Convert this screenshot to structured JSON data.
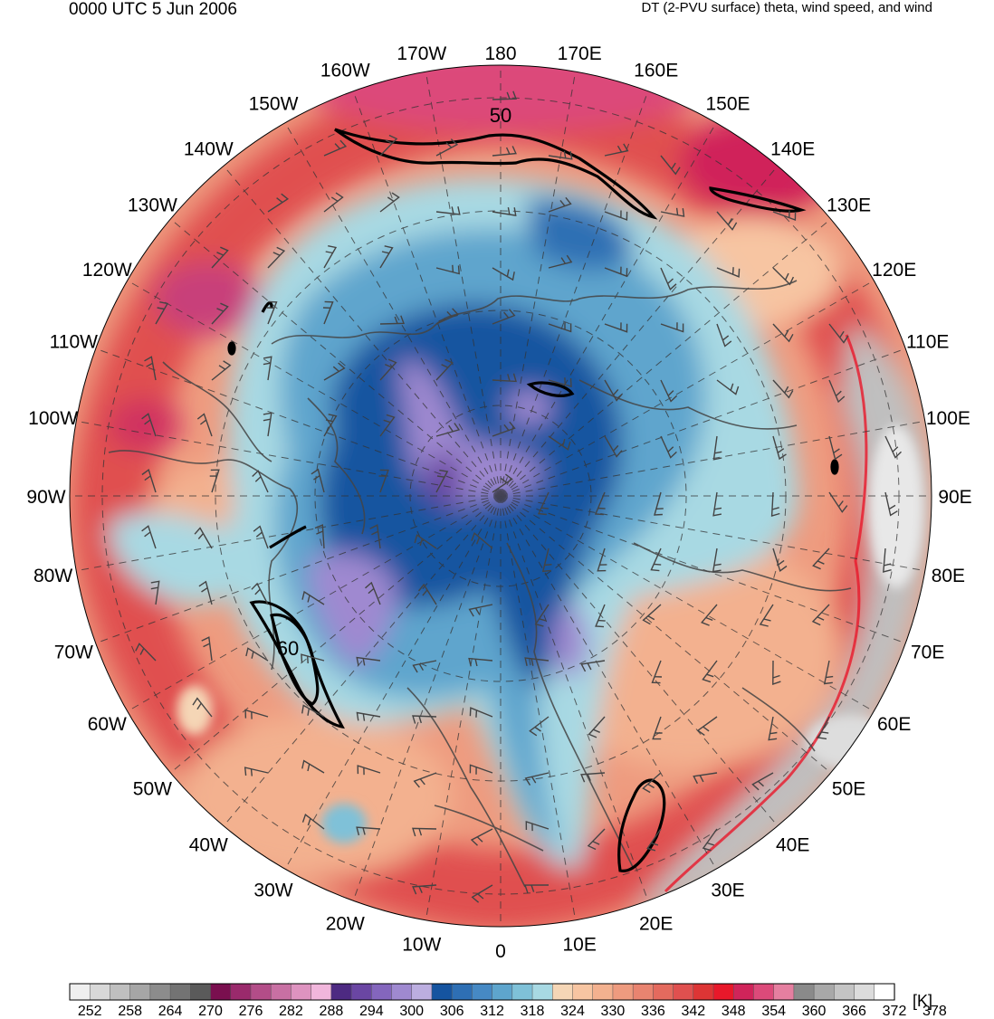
{
  "header": {
    "valid_time": "0000 UTC 5 Jun 2006",
    "description": "DT (2-PVU surface) theta, wind speed, and wind"
  },
  "map": {
    "projection": "north polar stereographic",
    "longitude_labels": [
      "180",
      "170E",
      "160E",
      "150E",
      "140E",
      "130E",
      "120E",
      "110E",
      "100E",
      "90E",
      "80E",
      "70E",
      "60E",
      "50E",
      "40E",
      "30E",
      "20E",
      "10E",
      "0",
      "10W",
      "20W",
      "30W",
      "40W",
      "50W",
      "60W",
      "70W",
      "80W",
      "90W",
      "100W",
      "110W",
      "120W",
      "130W",
      "140W",
      "150W",
      "160W",
      "170W"
    ],
    "contour_labels": [
      "50",
      "60"
    ]
  },
  "colorbar": {
    "unit": "[K]",
    "tick_labels": [
      "252",
      "258",
      "264",
      "270",
      "276",
      "282",
      "288",
      "294",
      "300",
      "306",
      "312",
      "318",
      "324",
      "330",
      "336",
      "342",
      "348",
      "354",
      "360",
      "366",
      "372",
      "378"
    ],
    "colors": [
      "#efefef",
      "#d8d8d8",
      "#bfbfbf",
      "#a6a6a6",
      "#8c8c8c",
      "#737373",
      "#5a5a5a",
      "#7a0f4f",
      "#9a2a6c",
      "#b34d88",
      "#c870a3",
      "#de93c0",
      "#f1b6dc",
      "#4d2a82",
      "#6a46a3",
      "#8466bd",
      "#9f89d0",
      "#bcaee0",
      "#1554a0",
      "#2e6fb4",
      "#4689c4",
      "#5ea5cd",
      "#7fc1d8",
      "#a8d9e3",
      "#f5d6b6",
      "#f7c5a2",
      "#f3b18f",
      "#ee9b7f",
      "#e98470",
      "#e46a5e",
      "#e0504f",
      "#dd3535",
      "#e8182a",
      "#d0245a",
      "#dc4a7a",
      "#e57fa0",
      "#8a8a8a",
      "#a8a8a8",
      "#c4c4c4",
      "#dcdcdc",
      "#ffffff"
    ]
  }
}
